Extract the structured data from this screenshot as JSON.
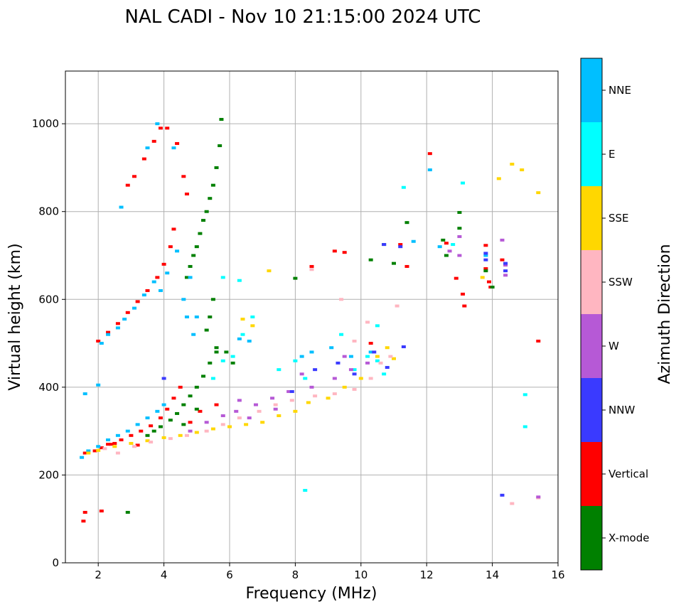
{
  "chart_data": {
    "type": "scatter",
    "title": "NAL CADI - Nov 10 21:15:00 2024 UTC",
    "xlabel": "Frequency (MHz)",
    "ylabel": "Virtual height (km)",
    "xlim": [
      1,
      16
    ],
    "ylim": [
      0,
      1120
    ],
    "xticks": [
      2,
      4,
      6,
      8,
      10,
      12,
      14,
      16
    ],
    "yticks": [
      0,
      200,
      400,
      600,
      800,
      1000
    ],
    "grid": true,
    "colorbar": {
      "title": "Azimuth Direction",
      "categories": [
        {
          "label": "X-mode",
          "color": "#008000"
        },
        {
          "label": "Vertical",
          "color": "#ff0000"
        },
        {
          "label": "NNW",
          "color": "#3a3aff"
        },
        {
          "label": "W",
          "color": "#b659d6"
        },
        {
          "label": "SSW",
          "color": "#ffb6c1"
        },
        {
          "label": "SSE",
          "color": "#ffd700"
        },
        {
          "label": "E",
          "color": "#00ffff"
        },
        {
          "label": "NNE",
          "color": "#00bfff"
        }
      ]
    },
    "series": [
      {
        "name": "Vertical",
        "points": [
          [
            1.6,
            250
          ],
          [
            1.9,
            255
          ],
          [
            2.1,
            262
          ],
          [
            2.4,
            270
          ],
          [
            2.7,
            280
          ],
          [
            3.0,
            290
          ],
          [
            3.3,
            300
          ],
          [
            3.6,
            312
          ],
          [
            3.9,
            330
          ],
          [
            4.1,
            350
          ],
          [
            4.3,
            375
          ],
          [
            4.5,
            400
          ],
          [
            2.0,
            505
          ],
          [
            2.3,
            525
          ],
          [
            2.6,
            545
          ],
          [
            2.9,
            570
          ],
          [
            3.2,
            595
          ],
          [
            3.5,
            620
          ],
          [
            3.8,
            650
          ],
          [
            4.0,
            680
          ],
          [
            4.2,
            720
          ],
          [
            4.3,
            760
          ],
          [
            2.9,
            860
          ],
          [
            3.1,
            880
          ],
          [
            3.4,
            920
          ],
          [
            3.7,
            960
          ],
          [
            3.9,
            990
          ],
          [
            4.1,
            990
          ],
          [
            4.4,
            955
          ],
          [
            4.6,
            880
          ],
          [
            4.7,
            840
          ],
          [
            1.6,
            115
          ],
          [
            1.55,
            95
          ],
          [
            2.1,
            118
          ],
          [
            2.3,
            270
          ],
          [
            2.5,
            272
          ],
          [
            3.2,
            268
          ],
          [
            4.8,
            320
          ],
          [
            5.1,
            345
          ],
          [
            5.6,
            360
          ],
          [
            9.2,
            710
          ],
          [
            9.5,
            707
          ],
          [
            8.5,
            675
          ],
          [
            11.2,
            725
          ],
          [
            11.4,
            675
          ],
          [
            12.1,
            932
          ],
          [
            12.6,
            728
          ],
          [
            12.9,
            648
          ],
          [
            13.1,
            612
          ],
          [
            13.15,
            585
          ],
          [
            13.8,
            723
          ],
          [
            13.8,
            670
          ],
          [
            13.9,
            640
          ],
          [
            13.95,
            628
          ],
          [
            14.3,
            690
          ],
          [
            15.4,
            505
          ],
          [
            10.3,
            500
          ]
        ]
      },
      {
        "name": "X-mode",
        "points": [
          [
            3.5,
            290
          ],
          [
            3.7,
            300
          ],
          [
            3.9,
            310
          ],
          [
            4.2,
            325
          ],
          [
            4.4,
            340
          ],
          [
            4.6,
            360
          ],
          [
            4.8,
            380
          ],
          [
            5.0,
            400
          ],
          [
            5.2,
            425
          ],
          [
            5.4,
            455
          ],
          [
            5.6,
            480
          ],
          [
            4.7,
            650
          ],
          [
            4.8,
            675
          ],
          [
            4.9,
            700
          ],
          [
            5.0,
            720
          ],
          [
            5.1,
            750
          ],
          [
            5.2,
            780
          ],
          [
            5.3,
            800
          ],
          [
            5.4,
            830
          ],
          [
            5.5,
            860
          ],
          [
            5.6,
            900
          ],
          [
            5.7,
            950
          ],
          [
            5.75,
            1010
          ],
          [
            5.5,
            600
          ],
          [
            5.4,
            560
          ],
          [
            5.3,
            530
          ],
          [
            5.6,
            490
          ],
          [
            5.9,
            480
          ],
          [
            6.1,
            455
          ],
          [
            2.9,
            115
          ],
          [
            8.0,
            648
          ],
          [
            10.3,
            690
          ],
          [
            10.7,
            725
          ],
          [
            11.0,
            682
          ],
          [
            11.4,
            775
          ],
          [
            12.5,
            735
          ],
          [
            12.6,
            700
          ],
          [
            13.0,
            762
          ],
          [
            13.0,
            798
          ],
          [
            13.8,
            665
          ],
          [
            14.0,
            628
          ],
          [
            4.6,
            315
          ],
          [
            5.0,
            350
          ]
        ]
      },
      {
        "name": "NNE",
        "points": [
          [
            1.5,
            240
          ],
          [
            1.7,
            255
          ],
          [
            2.0,
            265
          ],
          [
            2.3,
            280
          ],
          [
            2.6,
            290
          ],
          [
            2.9,
            300
          ],
          [
            3.2,
            315
          ],
          [
            3.5,
            330
          ],
          [
            3.8,
            345
          ],
          [
            4.0,
            360
          ],
          [
            2.1,
            500
          ],
          [
            2.3,
            520
          ],
          [
            2.6,
            535
          ],
          [
            2.8,
            555
          ],
          [
            3.1,
            580
          ],
          [
            3.4,
            610
          ],
          [
            3.7,
            640
          ],
          [
            3.9,
            620
          ],
          [
            4.1,
            660
          ],
          [
            4.4,
            710
          ],
          [
            4.6,
            600
          ],
          [
            4.7,
            560
          ],
          [
            4.9,
            520
          ],
          [
            3.5,
            945
          ],
          [
            3.8,
            1000
          ],
          [
            4.3,
            945
          ],
          [
            2.7,
            810
          ],
          [
            4.8,
            650
          ],
          [
            5.0,
            560
          ],
          [
            6.3,
            510
          ],
          [
            6.6,
            505
          ],
          [
            1.6,
            385
          ],
          [
            2.0,
            405
          ],
          [
            9.1,
            490
          ],
          [
            9.7,
            470
          ],
          [
            10.3,
            480
          ],
          [
            8.5,
            480
          ],
          [
            8.2,
            470
          ],
          [
            12.1,
            895
          ],
          [
            12.4,
            720
          ],
          [
            13.8,
            700
          ],
          [
            11.6,
            732
          ]
        ]
      },
      {
        "name": "E",
        "points": [
          [
            5.5,
            420
          ],
          [
            5.8,
            460
          ],
          [
            6.1,
            470
          ],
          [
            6.4,
            520
          ],
          [
            6.7,
            560
          ],
          [
            5.8,
            650
          ],
          [
            6.3,
            643
          ],
          [
            7.5,
            440
          ],
          [
            8.0,
            460
          ],
          [
            8.3,
            420
          ],
          [
            9.4,
            520
          ],
          [
            10.2,
            470
          ],
          [
            10.5,
            460
          ],
          [
            10.7,
            430
          ],
          [
            8.3,
            165
          ],
          [
            11.3,
            855
          ],
          [
            13.1,
            865
          ],
          [
            15.0,
            383
          ],
          [
            15.0,
            310
          ],
          [
            12.8,
            725
          ],
          [
            9.8,
            440
          ],
          [
            10.5,
            540
          ]
        ]
      },
      {
        "name": "SSE",
        "points": [
          [
            1.7,
            250
          ],
          [
            2.0,
            256
          ],
          [
            2.5,
            265
          ],
          [
            3.0,
            272
          ],
          [
            3.5,
            278
          ],
          [
            4.0,
            285
          ],
          [
            4.5,
            290
          ],
          [
            5.0,
            297
          ],
          [
            5.5,
            305
          ],
          [
            6.0,
            310
          ],
          [
            6.5,
            315
          ],
          [
            7.0,
            320
          ],
          [
            7.5,
            335
          ],
          [
            8.0,
            345
          ],
          [
            8.4,
            365
          ],
          [
            9.0,
            375
          ],
          [
            9.5,
            400
          ],
          [
            10.0,
            420
          ],
          [
            10.5,
            470
          ],
          [
            10.8,
            490
          ],
          [
            11.0,
            465
          ],
          [
            7.2,
            665
          ],
          [
            14.2,
            875
          ],
          [
            14.6,
            908
          ],
          [
            14.9,
            895
          ],
          [
            15.4,
            843
          ],
          [
            6.4,
            555
          ],
          [
            6.7,
            540
          ],
          [
            13.7,
            650
          ]
        ]
      },
      {
        "name": "SSW",
        "points": [
          [
            2.2,
            260
          ],
          [
            2.6,
            250
          ],
          [
            3.1,
            265
          ],
          [
            3.6,
            275
          ],
          [
            4.2,
            283
          ],
          [
            4.7,
            290
          ],
          [
            5.3,
            300
          ],
          [
            5.8,
            315
          ],
          [
            6.3,
            330
          ],
          [
            6.9,
            345
          ],
          [
            7.4,
            360
          ],
          [
            7.9,
            370
          ],
          [
            8.6,
            380
          ],
          [
            9.2,
            385
          ],
          [
            9.8,
            395
          ],
          [
            10.3,
            420
          ],
          [
            10.6,
            455
          ],
          [
            10.9,
            470
          ],
          [
            11.1,
            585
          ],
          [
            8.5,
            668
          ],
          [
            9.4,
            600
          ],
          [
            14.6,
            135
          ],
          [
            15.4,
            148
          ],
          [
            10.2,
            548
          ],
          [
            9.8,
            505
          ]
        ]
      },
      {
        "name": "W",
        "points": [
          [
            4.8,
            300
          ],
          [
            5.3,
            320
          ],
          [
            5.8,
            335
          ],
          [
            6.2,
            345
          ],
          [
            6.8,
            360
          ],
          [
            7.3,
            375
          ],
          [
            7.8,
            390
          ],
          [
            8.5,
            400
          ],
          [
            9.2,
            420
          ],
          [
            9.7,
            440
          ],
          [
            10.2,
            455
          ],
          [
            6.3,
            370
          ],
          [
            6.6,
            330
          ],
          [
            7.4,
            350
          ],
          [
            8.2,
            430
          ],
          [
            9.5,
            470
          ],
          [
            13.0,
            743
          ],
          [
            13.0,
            700
          ],
          [
            14.3,
            735
          ],
          [
            14.4,
            655
          ],
          [
            14.4,
            678
          ],
          [
            15.4,
            150
          ],
          [
            12.7,
            710
          ]
        ]
      },
      {
        "name": "NNW",
        "points": [
          [
            4.0,
            420
          ],
          [
            7.9,
            390
          ],
          [
            8.6,
            440
          ],
          [
            9.3,
            455
          ],
          [
            9.8,
            430
          ],
          [
            10.4,
            480
          ],
          [
            10.8,
            445
          ],
          [
            11.3,
            492
          ],
          [
            14.3,
            154
          ],
          [
            13.8,
            705
          ],
          [
            13.8,
            690
          ],
          [
            14.4,
            682
          ],
          [
            14.4,
            665
          ],
          [
            10.7,
            725
          ],
          [
            11.2,
            720
          ]
        ]
      }
    ]
  }
}
